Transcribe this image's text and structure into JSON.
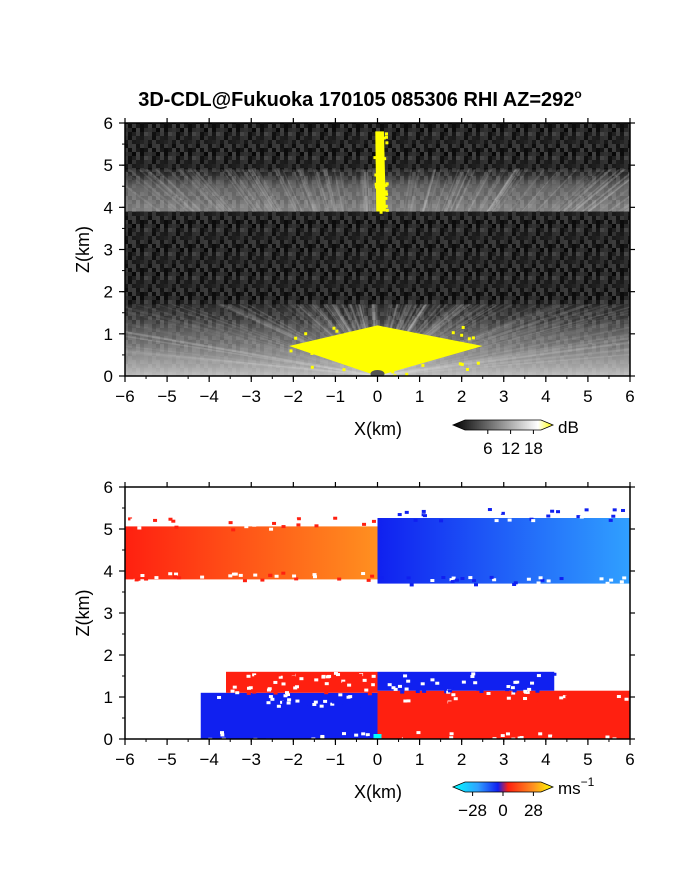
{
  "title": "3D-CDL@Fukuoka 170105 085306 RHI AZ=292",
  "title_degree": "o",
  "colors": {
    "axis": "#000000",
    "reflectivity_background": "#1a1a1a",
    "reflectivity_strong": "#ffff00",
    "velocity_negative": "#1020f0",
    "velocity_positive": "#ff2010",
    "velocity_far_negative": "#30a0ff",
    "velocity_far_positive": "#ff9020",
    "velocity_zero": "#00ffff"
  },
  "chart_data": [
    {
      "type": "heatmap",
      "name": "reflectivity",
      "xlabel": "X(km)",
      "ylabel": "Z(km)",
      "xlim": [
        -6,
        6
      ],
      "ylim": [
        0,
        6
      ],
      "x_ticks": [
        "-6",
        "-5",
        "-4",
        "-3",
        "-2",
        "-1",
        "0",
        "1",
        "2",
        "3",
        "4",
        "5",
        "6"
      ],
      "y_ticks": [
        "0",
        "1",
        "2",
        "3",
        "4",
        "5",
        "6"
      ],
      "colorbar": {
        "unit": "dB",
        "ticks": [
          "6",
          "12",
          "18"
        ],
        "range": [
          0,
          20
        ]
      },
      "layers": [
        {
          "x_start": -6,
          "x_end": 6,
          "z_bottom": 3.9,
          "z_top": 4.9
        },
        {
          "x_start": -6,
          "x_end": 6,
          "z_bottom": 0.0,
          "z_top": 1.7
        }
      ],
      "strong_echo_regions": [
        {
          "x_start": -0.1,
          "x_end": 0.2,
          "z_bottom": 3.9,
          "z_top": 5.8
        },
        {
          "x_start": -2.1,
          "x_end": 2.5,
          "z_bottom": 0.0,
          "z_top": 1.2
        }
      ]
    },
    {
      "type": "heatmap",
      "name": "velocity",
      "xlabel": "X(km)",
      "ylabel": "Z(km)",
      "xlim": [
        -6,
        6
      ],
      "ylim": [
        0,
        6
      ],
      "x_ticks": [
        "-6",
        "-5",
        "-4",
        "-3",
        "-2",
        "-1",
        "0",
        "1",
        "2",
        "3",
        "4",
        "5",
        "6"
      ],
      "y_ticks": [
        "0",
        "1",
        "2",
        "3",
        "4",
        "5",
        "6"
      ],
      "colorbar": {
        "unit": "ms",
        "unit_exponent": "-1",
        "ticks": [
          "-28",
          "0",
          "28"
        ],
        "range": [
          -35,
          35
        ]
      },
      "regions": [
        {
          "x_start": -6,
          "x_end": 0,
          "z_bottom": 3.8,
          "z_top": 5.3,
          "velocity_left": 22,
          "velocity_right": 16
        },
        {
          "x_start": 0,
          "x_end": 6,
          "z_bottom": 3.7,
          "z_top": 5.5,
          "velocity_left": -24,
          "velocity_right": -14
        },
        {
          "x_start": -4.2,
          "x_end": 0,
          "z_bottom": 0.0,
          "z_top": 1.1,
          "velocity_left": -25,
          "velocity_right": -25
        },
        {
          "x_start": -3.6,
          "x_end": 0,
          "z_bottom": 1.1,
          "z_top": 1.6,
          "velocity_left": 25,
          "velocity_right": 25
        },
        {
          "x_start": 0,
          "x_end": 6,
          "z_bottom": 0.0,
          "z_top": 1.15,
          "velocity_left": 25,
          "velocity_right": 25
        },
        {
          "x_start": 0,
          "x_end": 4.2,
          "z_bottom": 1.15,
          "z_top": 1.6,
          "velocity_left": -25,
          "velocity_right": -25
        }
      ]
    }
  ]
}
